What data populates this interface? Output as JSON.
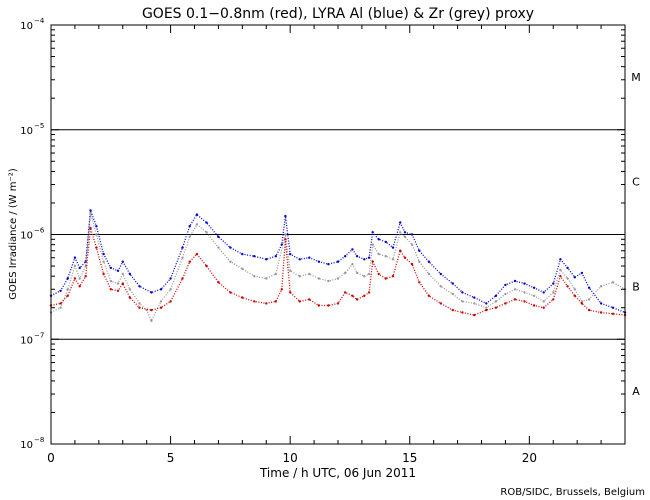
{
  "chart_data": {
    "type": "scatter",
    "title": "GOES 0.1−0.8nm (red), LYRA Al (blue) & Zr (grey) proxy",
    "xlabel": "Time / h UTC, 06 Jun 2011",
    "ylabel": "GOES Irradiance / (W m⁻²)",
    "credit": "ROB/SIDC, Brussels, Belgium",
    "xlim": [
      0,
      24
    ],
    "ylim": [
      1e-08,
      0.0001
    ],
    "yscale": "log",
    "x_ticks": [
      0,
      5,
      10,
      15,
      20
    ],
    "x_tick_labels": [
      "0",
      "5",
      "10",
      "15",
      "20"
    ],
    "y_ticks": [
      {
        "value": 1e-08,
        "mantissa": "10",
        "exponent": "−8"
      },
      {
        "value": 1e-07,
        "mantissa": "10",
        "exponent": "−7"
      },
      {
        "value": 1e-06,
        "mantissa": "10",
        "exponent": "−6"
      },
      {
        "value": 1e-05,
        "mantissa": "10",
        "exponent": "−5"
      },
      {
        "value": 0.0001,
        "mantissa": "10",
        "exponent": "−4"
      }
    ],
    "flare_class_lines": [
      1e-07,
      1e-06,
      1e-05
    ],
    "flare_classes": [
      {
        "label": "A",
        "value": 3.2e-08
      },
      {
        "label": "B",
        "value": 3.2e-07
      },
      {
        "label": "C",
        "value": 3.2e-06
      },
      {
        "label": "M",
        "value": 3.2e-05
      }
    ],
    "grid": false,
    "series": [
      {
        "color": "#0000cc",
        "points": [
          [
            0,
            2.6e-07
          ],
          [
            0.4,
            2.9e-07
          ],
          [
            0.7,
            3.8e-07
          ],
          [
            1.0,
            6e-07
          ],
          [
            1.2,
            4.8e-07
          ],
          [
            1.45,
            5.5e-07
          ],
          [
            1.65,
            1.7e-06
          ],
          [
            1.9,
            1.2e-06
          ],
          [
            2.2,
            6.5e-07
          ],
          [
            2.5,
            4.8e-07
          ],
          [
            2.8,
            4.5e-07
          ],
          [
            3.0,
            5.5e-07
          ],
          [
            3.3,
            4.2e-07
          ],
          [
            3.7,
            3.2e-07
          ],
          [
            4.2,
            2.8e-07
          ],
          [
            4.6,
            3e-07
          ],
          [
            5.0,
            3.8e-07
          ],
          [
            5.5,
            7.5e-07
          ],
          [
            5.8,
            1.2e-06
          ],
          [
            6.1,
            1.55e-06
          ],
          [
            6.5,
            1.3e-06
          ],
          [
            7.0,
            9.5e-07
          ],
          [
            7.5,
            7.5e-07
          ],
          [
            8.0,
            6.5e-07
          ],
          [
            8.5,
            6.2e-07
          ],
          [
            9.0,
            5.8e-07
          ],
          [
            9.4,
            6.2e-07
          ],
          [
            9.65,
            8e-07
          ],
          [
            9.8,
            1.5e-06
          ],
          [
            10.0,
            6.5e-07
          ],
          [
            10.4,
            5.8e-07
          ],
          [
            10.8,
            6e-07
          ],
          [
            11.2,
            5.5e-07
          ],
          [
            11.6,
            5.2e-07
          ],
          [
            12.0,
            5.5e-07
          ],
          [
            12.3,
            6.2e-07
          ],
          [
            12.6,
            7.2e-07
          ],
          [
            12.8,
            6.2e-07
          ],
          [
            13.1,
            5.8e-07
          ],
          [
            13.3,
            6e-07
          ],
          [
            13.45,
            1.05e-06
          ],
          [
            13.7,
            9e-07
          ],
          [
            14.0,
            8.5e-07
          ],
          [
            14.3,
            7.5e-07
          ],
          [
            14.6,
            1.3e-06
          ],
          [
            14.8,
            1.05e-06
          ],
          [
            15.1,
            1e-06
          ],
          [
            15.4,
            7e-07
          ],
          [
            15.8,
            5.5e-07
          ],
          [
            16.3,
            4.2e-07
          ],
          [
            16.8,
            3.4e-07
          ],
          [
            17.2,
            2.8e-07
          ],
          [
            17.7,
            2.5e-07
          ],
          [
            18.2,
            2.2e-07
          ],
          [
            18.6,
            2.6e-07
          ],
          [
            19.0,
            3.3e-07
          ],
          [
            19.4,
            3.6e-07
          ],
          [
            19.8,
            3.4e-07
          ],
          [
            20.2,
            3.1e-07
          ],
          [
            20.6,
            2.8e-07
          ],
          [
            21.0,
            3.4e-07
          ],
          [
            21.3,
            5.8e-07
          ],
          [
            21.6,
            4.8e-07
          ],
          [
            21.9,
            3.9e-07
          ],
          [
            22.2,
            4.3e-07
          ],
          [
            22.5,
            3.1e-07
          ],
          [
            23.0,
            2.2e-07
          ],
          [
            23.5,
            2e-07
          ],
          [
            24.0,
            1.8e-07
          ]
        ]
      },
      {
        "color": "#999999",
        "points": [
          [
            0,
            1.8e-07
          ],
          [
            0.4,
            2e-07
          ],
          [
            0.7,
            3e-07
          ],
          [
            1.0,
            5e-07
          ],
          [
            1.2,
            3.8e-07
          ],
          [
            1.45,
            5e-07
          ],
          [
            1.65,
            1.6e-06
          ],
          [
            1.9,
            1e-06
          ],
          [
            2.2,
            5.5e-07
          ],
          [
            2.5,
            3.6e-07
          ],
          [
            2.8,
            3.4e-07
          ],
          [
            3.0,
            4.2e-07
          ],
          [
            3.3,
            3e-07
          ],
          [
            3.7,
            2.2e-07
          ],
          [
            4.0,
            1.9e-07
          ],
          [
            4.2,
            1.5e-07
          ],
          [
            4.6,
            2.3e-07
          ],
          [
            5.0,
            3e-07
          ],
          [
            5.5,
            6e-07
          ],
          [
            5.8,
            9.5e-07
          ],
          [
            6.1,
            1.25e-06
          ],
          [
            6.5,
            1.05e-06
          ],
          [
            7.0,
            7.5e-07
          ],
          [
            7.5,
            5.5e-07
          ],
          [
            8.0,
            4.7e-07
          ],
          [
            8.5,
            4e-07
          ],
          [
            9.0,
            3.8e-07
          ],
          [
            9.4,
            4.2e-07
          ],
          [
            9.8,
            1e-06
          ],
          [
            10.0,
            4.5e-07
          ],
          [
            10.4,
            4e-07
          ],
          [
            10.8,
            4.2e-07
          ],
          [
            11.2,
            3.8e-07
          ],
          [
            11.6,
            3.6e-07
          ],
          [
            12.0,
            3.8e-07
          ],
          [
            12.3,
            4.3e-07
          ],
          [
            12.6,
            5.2e-07
          ],
          [
            12.8,
            4.3e-07
          ],
          [
            13.1,
            4e-07
          ],
          [
            13.3,
            4.2e-07
          ],
          [
            13.45,
            8e-07
          ],
          [
            13.7,
            6.5e-07
          ],
          [
            14.0,
            6.2e-07
          ],
          [
            14.3,
            5.8e-07
          ],
          [
            14.6,
            1.05e-06
          ],
          [
            14.8,
            9.5e-07
          ],
          [
            15.1,
            8e-07
          ],
          [
            15.4,
            5.5e-07
          ],
          [
            15.8,
            4.2e-07
          ],
          [
            16.3,
            3.2e-07
          ],
          [
            16.8,
            2.7e-07
          ],
          [
            17.2,
            2.3e-07
          ],
          [
            17.7,
            2.2e-07
          ],
          [
            18.2,
            2e-07
          ],
          [
            18.6,
            2.3e-07
          ],
          [
            19.0,
            2.7e-07
          ],
          [
            19.4,
            3e-07
          ],
          [
            19.8,
            2.8e-07
          ],
          [
            20.2,
            2.6e-07
          ],
          [
            20.6,
            2.3e-07
          ],
          [
            21.0,
            2.8e-07
          ],
          [
            21.3,
            4.6e-07
          ],
          [
            21.6,
            3.8e-07
          ],
          [
            21.9,
            3e-07
          ],
          [
            22.2,
            2.3e-07
          ],
          [
            22.5,
            2.4e-07
          ],
          [
            23.0,
            3.2e-07
          ],
          [
            23.5,
            3.5e-07
          ],
          [
            24.0,
            3e-07
          ]
        ]
      },
      {
        "color": "#cc0000",
        "points": [
          [
            0,
            2.1e-07
          ],
          [
            0.4,
            2.2e-07
          ],
          [
            0.7,
            2.6e-07
          ],
          [
            1.0,
            3.8e-07
          ],
          [
            1.2,
            3.2e-07
          ],
          [
            1.45,
            4e-07
          ],
          [
            1.65,
            1.15e-06
          ],
          [
            1.9,
            7.5e-07
          ],
          [
            2.2,
            4.2e-07
          ],
          [
            2.5,
            3e-07
          ],
          [
            2.8,
            2.9e-07
          ],
          [
            3.0,
            3.4e-07
          ],
          [
            3.3,
            2.5e-07
          ],
          [
            3.7,
            2e-07
          ],
          [
            4.2,
            1.9e-07
          ],
          [
            4.6,
            2e-07
          ],
          [
            5.0,
            2.3e-07
          ],
          [
            5.5,
            3.8e-07
          ],
          [
            5.8,
            5.5e-07
          ],
          [
            6.1,
            6.5e-07
          ],
          [
            6.5,
            5e-07
          ],
          [
            7.0,
            3.5e-07
          ],
          [
            7.5,
            2.8e-07
          ],
          [
            8.0,
            2.5e-07
          ],
          [
            8.5,
            2.3e-07
          ],
          [
            9.0,
            2.2e-07
          ],
          [
            9.4,
            2.3e-07
          ],
          [
            9.65,
            3e-07
          ],
          [
            9.8,
            9e-07
          ],
          [
            10.0,
            2.8e-07
          ],
          [
            10.4,
            2.3e-07
          ],
          [
            10.8,
            2.4e-07
          ],
          [
            11.2,
            2.1e-07
          ],
          [
            11.6,
            2.1e-07
          ],
          [
            12.0,
            2.2e-07
          ],
          [
            12.3,
            2.8e-07
          ],
          [
            12.6,
            2.6e-07
          ],
          [
            12.8,
            2.4e-07
          ],
          [
            13.1,
            2.6e-07
          ],
          [
            13.3,
            2.8e-07
          ],
          [
            13.45,
            5.5e-07
          ],
          [
            13.7,
            4.2e-07
          ],
          [
            14.0,
            3.8e-07
          ],
          [
            14.3,
            4e-07
          ],
          [
            14.6,
            7e-07
          ],
          [
            14.8,
            6e-07
          ],
          [
            15.1,
            5.2e-07
          ],
          [
            15.4,
            3.5e-07
          ],
          [
            15.8,
            2.6e-07
          ],
          [
            16.3,
            2.2e-07
          ],
          [
            16.8,
            1.9e-07
          ],
          [
            17.2,
            1.8e-07
          ],
          [
            17.7,
            1.7e-07
          ],
          [
            18.2,
            1.9e-07
          ],
          [
            18.6,
            2e-07
          ],
          [
            19.0,
            2.2e-07
          ],
          [
            19.4,
            2.4e-07
          ],
          [
            19.8,
            2.3e-07
          ],
          [
            20.2,
            2.1e-07
          ],
          [
            20.6,
            2e-07
          ],
          [
            21.0,
            2.4e-07
          ],
          [
            21.3,
            4e-07
          ],
          [
            21.6,
            3.2e-07
          ],
          [
            21.9,
            2.6e-07
          ],
          [
            22.2,
            2.2e-07
          ],
          [
            22.5,
            1.9e-07
          ],
          [
            23.0,
            1.8e-07
          ],
          [
            23.5,
            1.75e-07
          ],
          [
            24.0,
            1.7e-07
          ]
        ]
      }
    ]
  }
}
